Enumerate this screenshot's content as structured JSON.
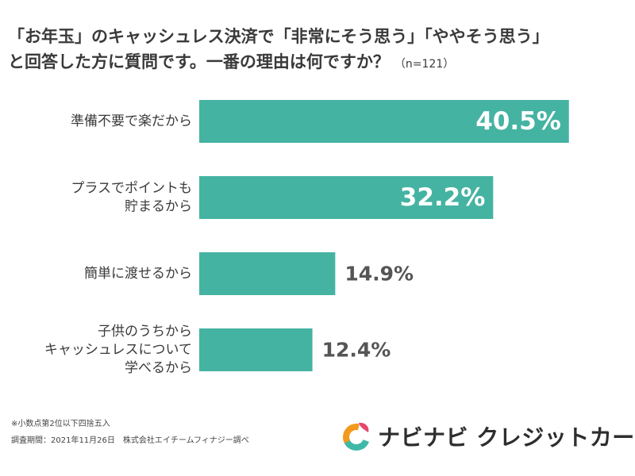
{
  "title": {
    "line1": "「お年玉」のキャッシュレス決済で「非常にそう思う」「ややそう思う」",
    "line2": "と回答した方に質問です。一番の理由は何ですか？",
    "n_label": "（n=121）"
  },
  "chart_data": {
    "type": "bar",
    "orientation": "horizontal",
    "categories": [
      [
        "準備不要で楽だから"
      ],
      [
        "プラスでポイントも",
        "貯まるから"
      ],
      [
        "簡単に渡せるから"
      ],
      [
        "子供のうちから",
        "キャッシュレスについて",
        "学べるから"
      ]
    ],
    "values": [
      40.5,
      32.2,
      14.9,
      12.4
    ],
    "value_labels": [
      "40.5%",
      "32.2%",
      "14.9%",
      "12.4%"
    ],
    "unit": "%",
    "xlim": [
      0,
      45
    ],
    "grid": false,
    "legend": "none",
    "bar_color": "#45b3a2"
  },
  "footnotes": {
    "rounding": "※小数点第2位以下四捨五入",
    "survey": "調査期間：2021年11月26日　株式会社エイチームフィナジー調べ"
  },
  "brand": {
    "name": "ナビナビ クレジットカード",
    "logo_icon": "navinavi-logo-icon",
    "colors": {
      "orange": "#f39a1e",
      "teal": "#3fb8a8",
      "pink": "#e8456d"
    }
  }
}
